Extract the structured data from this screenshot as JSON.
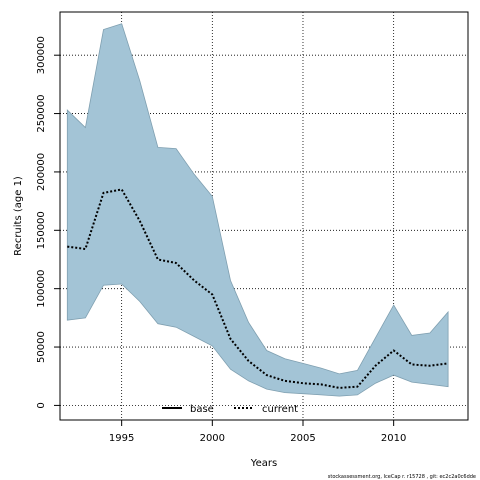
{
  "chart_data": {
    "type": "area",
    "xlabel": "Years",
    "ylabel": "Recruits (age 1)",
    "xlim": [
      1991.6,
      2014.1
    ],
    "ylim": [
      -12500,
      337000
    ],
    "x_ticks": [
      1995,
      2000,
      2005,
      2010
    ],
    "y_ticks": [
      0,
      50000,
      100000,
      150000,
      200000,
      250000,
      300000
    ],
    "x_tick_labels": [
      "1995",
      "2000",
      "2005",
      "2010"
    ],
    "y_tick_labels": [
      "0",
      "50000",
      "100000",
      "150000",
      "200000",
      "250000",
      "300000"
    ],
    "grid": true,
    "legend_position": "bottom-center",
    "x": [
      1992,
      1993,
      1994,
      1995,
      1996,
      1997,
      1998,
      1999,
      2000,
      2001,
      2002,
      2003,
      2004,
      2005,
      2006,
      2007,
      2008,
      2009,
      2010,
      2011,
      2012,
      2013
    ],
    "band": {
      "upper": [
        253000,
        238000,
        322000,
        327000,
        278000,
        221000,
        220000,
        198000,
        179000,
        107000,
        71000,
        47000,
        40000,
        36000,
        32000,
        27000,
        30000,
        58000,
        86000,
        60000,
        62000,
        80000
      ],
      "lower": [
        73000,
        75000,
        103000,
        104000,
        89000,
        70000,
        67000,
        59000,
        51000,
        31000,
        21000,
        14000,
        11000,
        10000,
        9000,
        8000,
        9000,
        19000,
        26000,
        20000,
        18000,
        16000
      ],
      "color": "#a3c4d6"
    },
    "series": [
      {
        "name": "current",
        "style": "dotted",
        "color": "#000000",
        "values": [
          136000,
          134000,
          182000,
          185000,
          158000,
          125000,
          122000,
          107000,
          95000,
          57000,
          38000,
          26000,
          21000,
          19000,
          18000,
          15000,
          16000,
          34000,
          47000,
          35000,
          34000,
          36000
        ]
      }
    ],
    "legend": [
      {
        "label": "base",
        "style": "solid",
        "color": "#000000"
      },
      {
        "label": "current",
        "style": "dotted",
        "color": "#000000"
      }
    ]
  },
  "footer": "stockassessment.org, IceCap r. r15728 , git: ec2c2a0c6dde"
}
